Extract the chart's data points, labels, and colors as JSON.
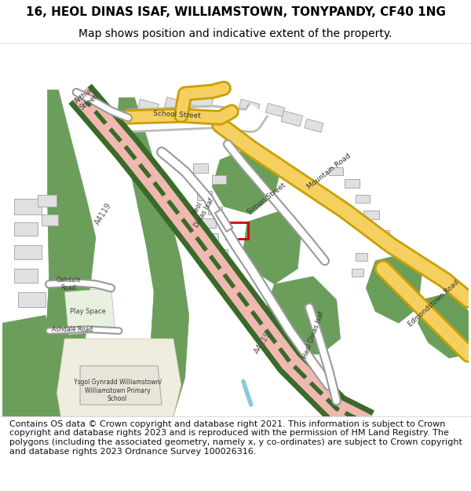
{
  "title_line1": "16, HEOL DINAS ISAF, WILLIAMSTOWN, TONYPANDY, CF40 1NG",
  "title_line2": "Map shows position and indicative extent of the property.",
  "footer_text": "Contains OS data © Crown copyright and database right 2021. This information is subject to Crown copyright and database rights 2023 and is reproduced with the permission of HM Land Registry. The polygons (including the associated geometry, namely x, y co-ordinates) are subject to Crown copyright and database rights 2023 Ordnance Survey 100026316.",
  "title_fontsize": 11,
  "subtitle_fontsize": 10,
  "footer_fontsize": 8,
  "fig_width": 6.0,
  "fig_height": 6.25,
  "map_bg": "#f8f8f8",
  "header_bg": "#ffffff",
  "footer_bg": "#ffffff",
  "road_yellow": "#f5d478",
  "road_yellow_border": "#e8b800",
  "green_areas": "#6a9e5a",
  "building_fill": "#e8e8e8",
  "building_stroke": "#c0c0c0",
  "road_white": "#ffffff",
  "road_stroke": "#cccccc",
  "railway_pink": "#f0b8b0",
  "railway_green": "#4a7a3a",
  "highlight_red": "#cc0000",
  "water_blue": "#88ccdd",
  "school_fill": "#f0ece0",
  "play_fill": "#e8f0e0",
  "text_color": "#333333"
}
